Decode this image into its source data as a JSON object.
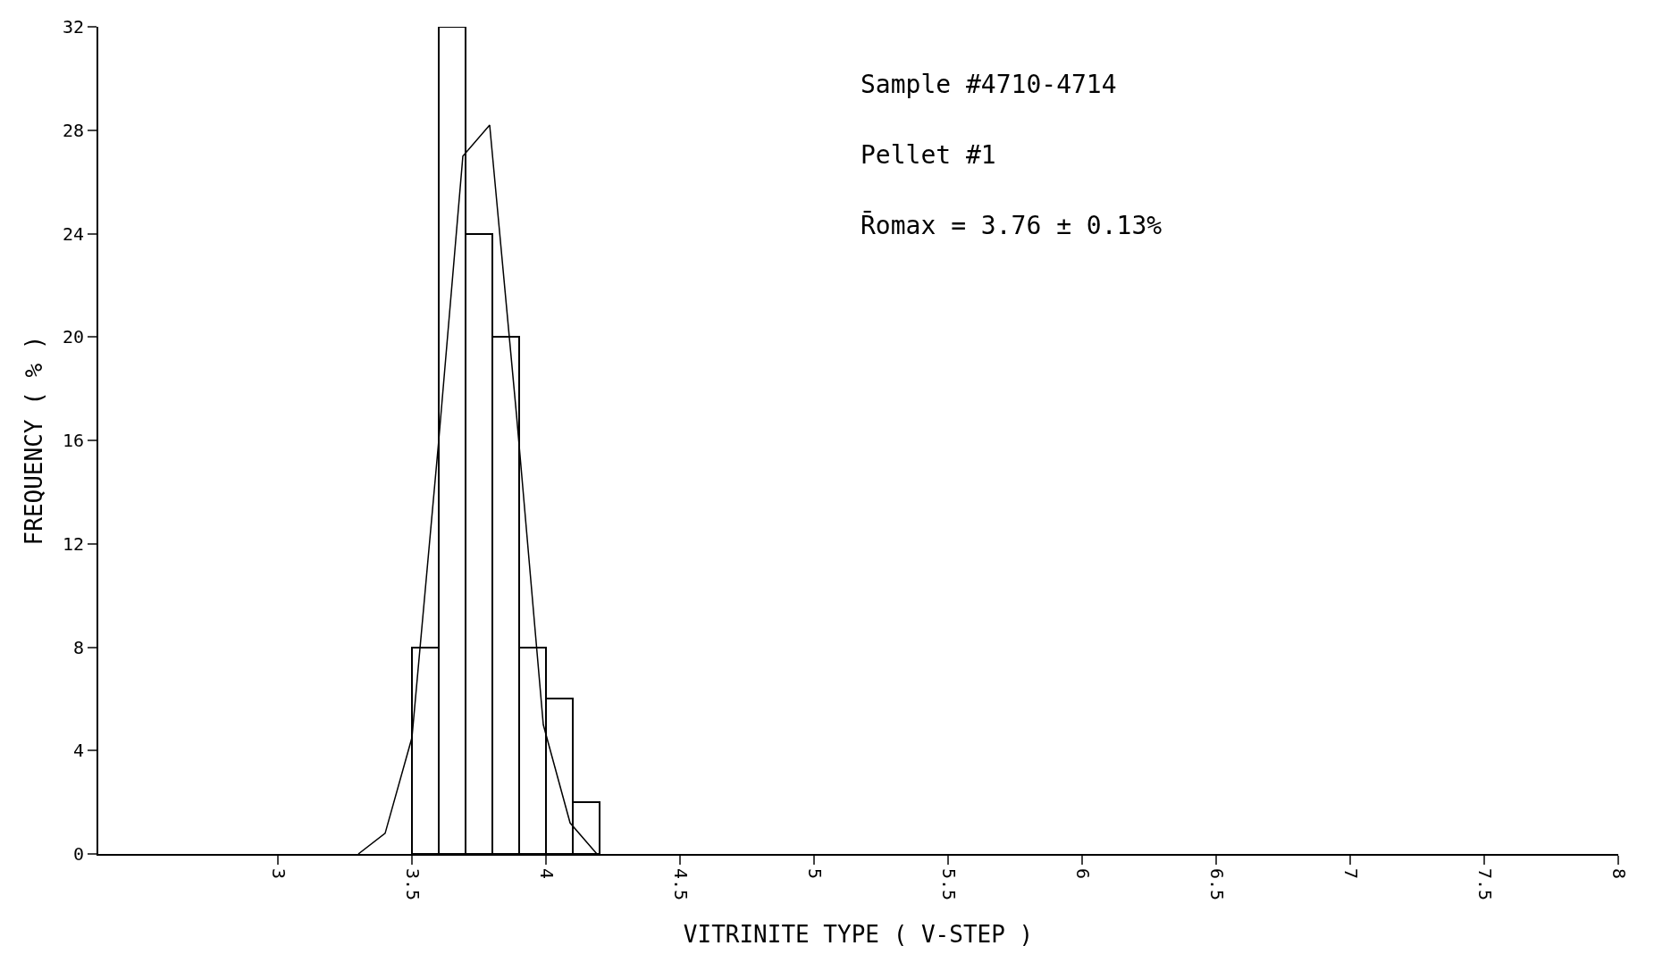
{
  "chart_data": {
    "type": "histogram",
    "xlabel": "VITRINITE TYPE ( V-STEP )",
    "ylabel": "FREQUENCY ( % )",
    "bins": [
      3.5,
      3.6,
      3.7,
      3.8,
      3.9,
      4.0,
      4.1,
      4.2
    ],
    "values": [
      8,
      32,
      24,
      20,
      8,
      6,
      2
    ],
    "color": "#ffffff",
    "series": [
      {
        "type": "line",
        "color": "#000000",
        "x": [
          3.3,
          3.4,
          3.5,
          3.6,
          3.69,
          3.79,
          3.89,
          3.99,
          4.09,
          4.19
        ],
        "values": [
          0,
          0.8,
          4.5,
          16,
          27,
          28.2,
          17,
          5,
          1.2,
          0
        ]
      }
    ],
    "annotations": [
      "Sample #4710-4714",
      "Pellet #1",
      "R̄omax = 3.76 ± 0.13%"
    ],
    "xlim": [
      2.33,
      8
    ],
    "xticks": [
      3,
      3.5,
      4,
      4.5,
      5,
      5.5,
      6,
      6.5,
      7,
      7.5,
      8
    ],
    "ylim": [
      0,
      32
    ],
    "yticks": [
      0,
      4,
      8,
      12,
      16,
      20,
      24,
      28,
      32
    ]
  }
}
